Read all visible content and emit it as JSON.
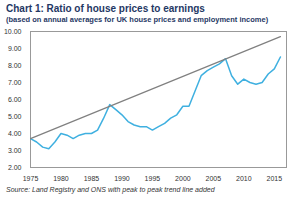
{
  "chart_data": {
    "type": "line",
    "title": "Chart 1: Ratio of house prices to earnings",
    "subtitle": "(based on annual averages for UK house prices and employment income)",
    "caption": "Source: Land Registry and ONS with peak to peak trend line added",
    "x": [
      1975,
      1976,
      1977,
      1978,
      1979,
      1980,
      1981,
      1982,
      1983,
      1984,
      1985,
      1986,
      1987,
      1988,
      1989,
      1990,
      1991,
      1992,
      1993,
      1994,
      1995,
      1996,
      1997,
      1998,
      1999,
      2000,
      2001,
      2002,
      2003,
      2004,
      2005,
      2006,
      2007,
      2008,
      2009,
      2010,
      2011,
      2012,
      2013,
      2014,
      2015,
      2016
    ],
    "series": [
      {
        "color": "#3fb0e0",
        "values": [
          3.7,
          3.5,
          3.2,
          3.1,
          3.5,
          4.0,
          3.9,
          3.7,
          3.9,
          4.0,
          4.0,
          4.2,
          4.9,
          5.7,
          5.4,
          5.1,
          4.7,
          4.5,
          4.4,
          4.4,
          4.2,
          4.4,
          4.6,
          4.9,
          5.1,
          5.6,
          5.6,
          6.5,
          7.4,
          7.7,
          7.9,
          8.1,
          8.4,
          7.4,
          6.9,
          7.2,
          7.0,
          6.9,
          7.0,
          7.5,
          7.8,
          8.5
        ]
      },
      {
        "color": "#808080",
        "x": [
          1975,
          2016
        ],
        "values": [
          3.7,
          9.7
        ]
      }
    ],
    "xlim": [
      1975,
      2017
    ],
    "xticks": [
      1975,
      1980,
      1985,
      1990,
      1995,
      2000,
      2005,
      2010,
      2015
    ],
    "ylim": [
      2,
      10
    ],
    "yticks": [
      {
        "value": 2,
        "label": "2.00"
      },
      {
        "value": 3,
        "label": "3.00"
      },
      {
        "value": 4,
        "label": "4.00"
      },
      {
        "value": 5,
        "label": "5.00"
      },
      {
        "value": 6,
        "label": "6.00"
      },
      {
        "value": 7,
        "label": "7.00"
      },
      {
        "value": 8,
        "label": "8.00"
      },
      {
        "value": 9,
        "label": "9.00"
      },
      {
        "value": 10,
        "label": "10.00"
      }
    ],
    "grid": false
  }
}
